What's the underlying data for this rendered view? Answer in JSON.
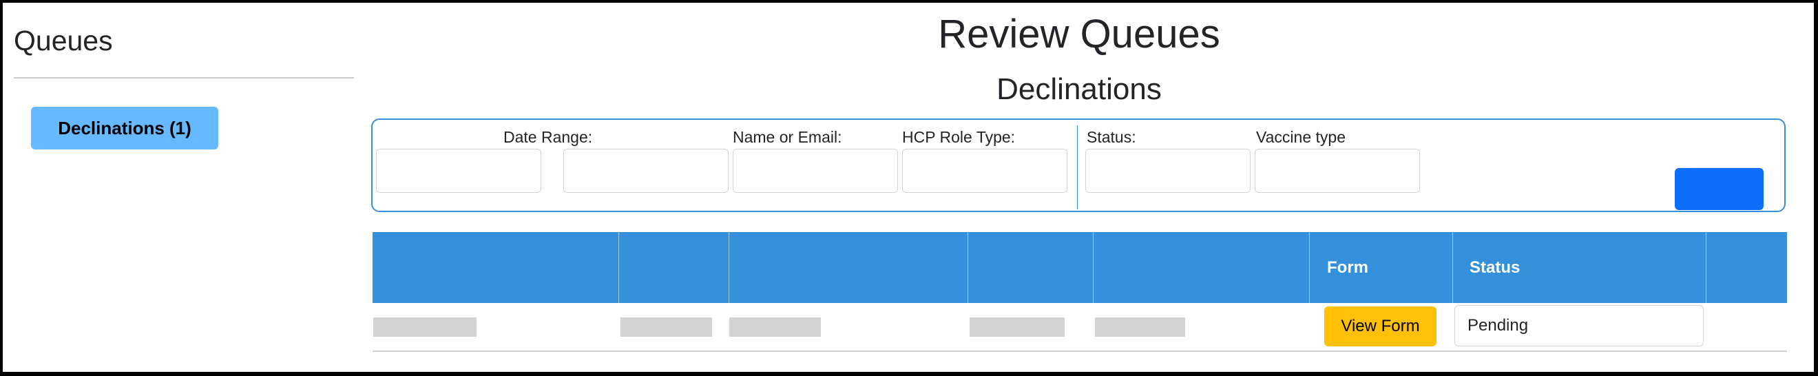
{
  "sidebar": {
    "title": "Queues",
    "items": [
      {
        "label": "Declinations (1)"
      }
    ]
  },
  "main": {
    "title": "Review Queues",
    "subtitle": "Declinations",
    "filters": {
      "date_range_label": "Date Range:",
      "date_from_value": "",
      "date_to_value": "",
      "name_email_label": "Name or Email:",
      "name_email_value": "",
      "hcp_role_label": "HCP Role Type:",
      "hcp_role_value": "",
      "status_label": "Status:",
      "status_value": "",
      "vaccine_label": "Vaccine type",
      "vaccine_value": "",
      "search_button_label": ""
    },
    "table": {
      "headers": [
        "",
        "",
        "",
        "",
        "",
        "Form",
        "Status",
        ""
      ],
      "rows": [
        {
          "view_form_label": "View Form",
          "status": "Pending"
        }
      ]
    }
  },
  "colors": {
    "accent": "#3590dc",
    "sidebar_button": "#66b8ff",
    "primary_button": "#0d6efd",
    "view_form_button": "#ffc107",
    "redacted": "#d3d3d3"
  }
}
